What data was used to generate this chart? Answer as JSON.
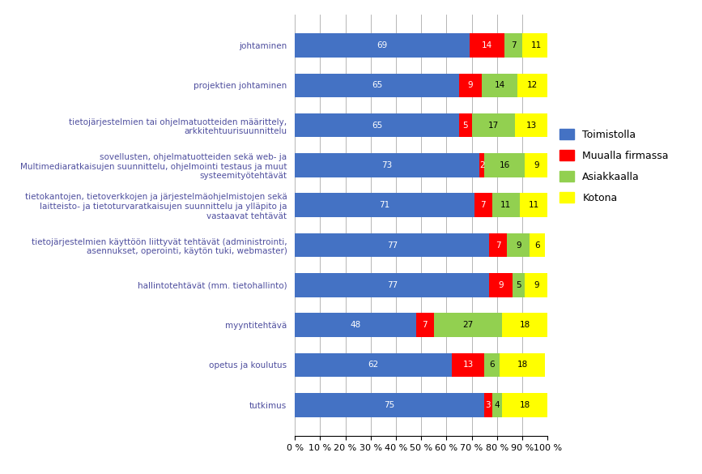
{
  "categories": [
    "johtaminen",
    "projektien johtaminen",
    "tietojärjestelmien tai ohjelmatuotteiden määrittely,\narkkitehtuurisuunnittelu",
    "sovellusten, ohjelmatuotteiden sekä web- ja\nMultimediaratkaisujen suunnittelu, ohjelmointi testaus ja muut\nsysteemityötehtävät",
    "tietokantojen, tietoverkkojen ja järjestelmäohjelmistojen sekä\nlaitteisto- ja tietoturvaratkaisujen suunnittelu ja ylläpito ja\nvastaavat tehtävät",
    "tietojärjestelmien käyttöön liittyvät tehtävät (administrointi,\nasennukset, operointi, käytön tuki, webmaster)",
    "hallintotehtävät (mm. tietohallinto)",
    "myyntitehtävä",
    "opetus ja koulutus",
    "tutkimus"
  ],
  "toimistolla": [
    69,
    65,
    65,
    73,
    71,
    77,
    77,
    48,
    62,
    75
  ],
  "muualla_firmassa": [
    14,
    9,
    5,
    2,
    7,
    7,
    9,
    7,
    13,
    3
  ],
  "asiakkaalla": [
    7,
    14,
    17,
    16,
    11,
    9,
    5,
    27,
    6,
    4
  ],
  "kotona": [
    11,
    12,
    13,
    9,
    11,
    6,
    9,
    18,
    18,
    18
  ],
  "colors": {
    "toimistolla": "#4472C4",
    "muualla_firmassa": "#FF0000",
    "asiakkaalla": "#92D050",
    "kotona": "#FFFF00"
  },
  "legend_labels": [
    "Toimistolla",
    "Muualla firmassa",
    "Asiakkaalla",
    "Kotona"
  ],
  "xtick_labels": [
    "0 %",
    "10 %",
    "20 %",
    "30 %",
    "40 %",
    "50 %",
    "60 %",
    "70 %",
    "80 %",
    "90 %",
    "100 %"
  ],
  "xtick_values": [
    0,
    10,
    20,
    30,
    40,
    50,
    60,
    70,
    80,
    90,
    100
  ],
  "bar_label_fontsize": 7.5,
  "ytick_fontsize": 7.5,
  "legend_fontsize": 9,
  "label_color": "#4E4E9E",
  "all_blue_labels": true
}
